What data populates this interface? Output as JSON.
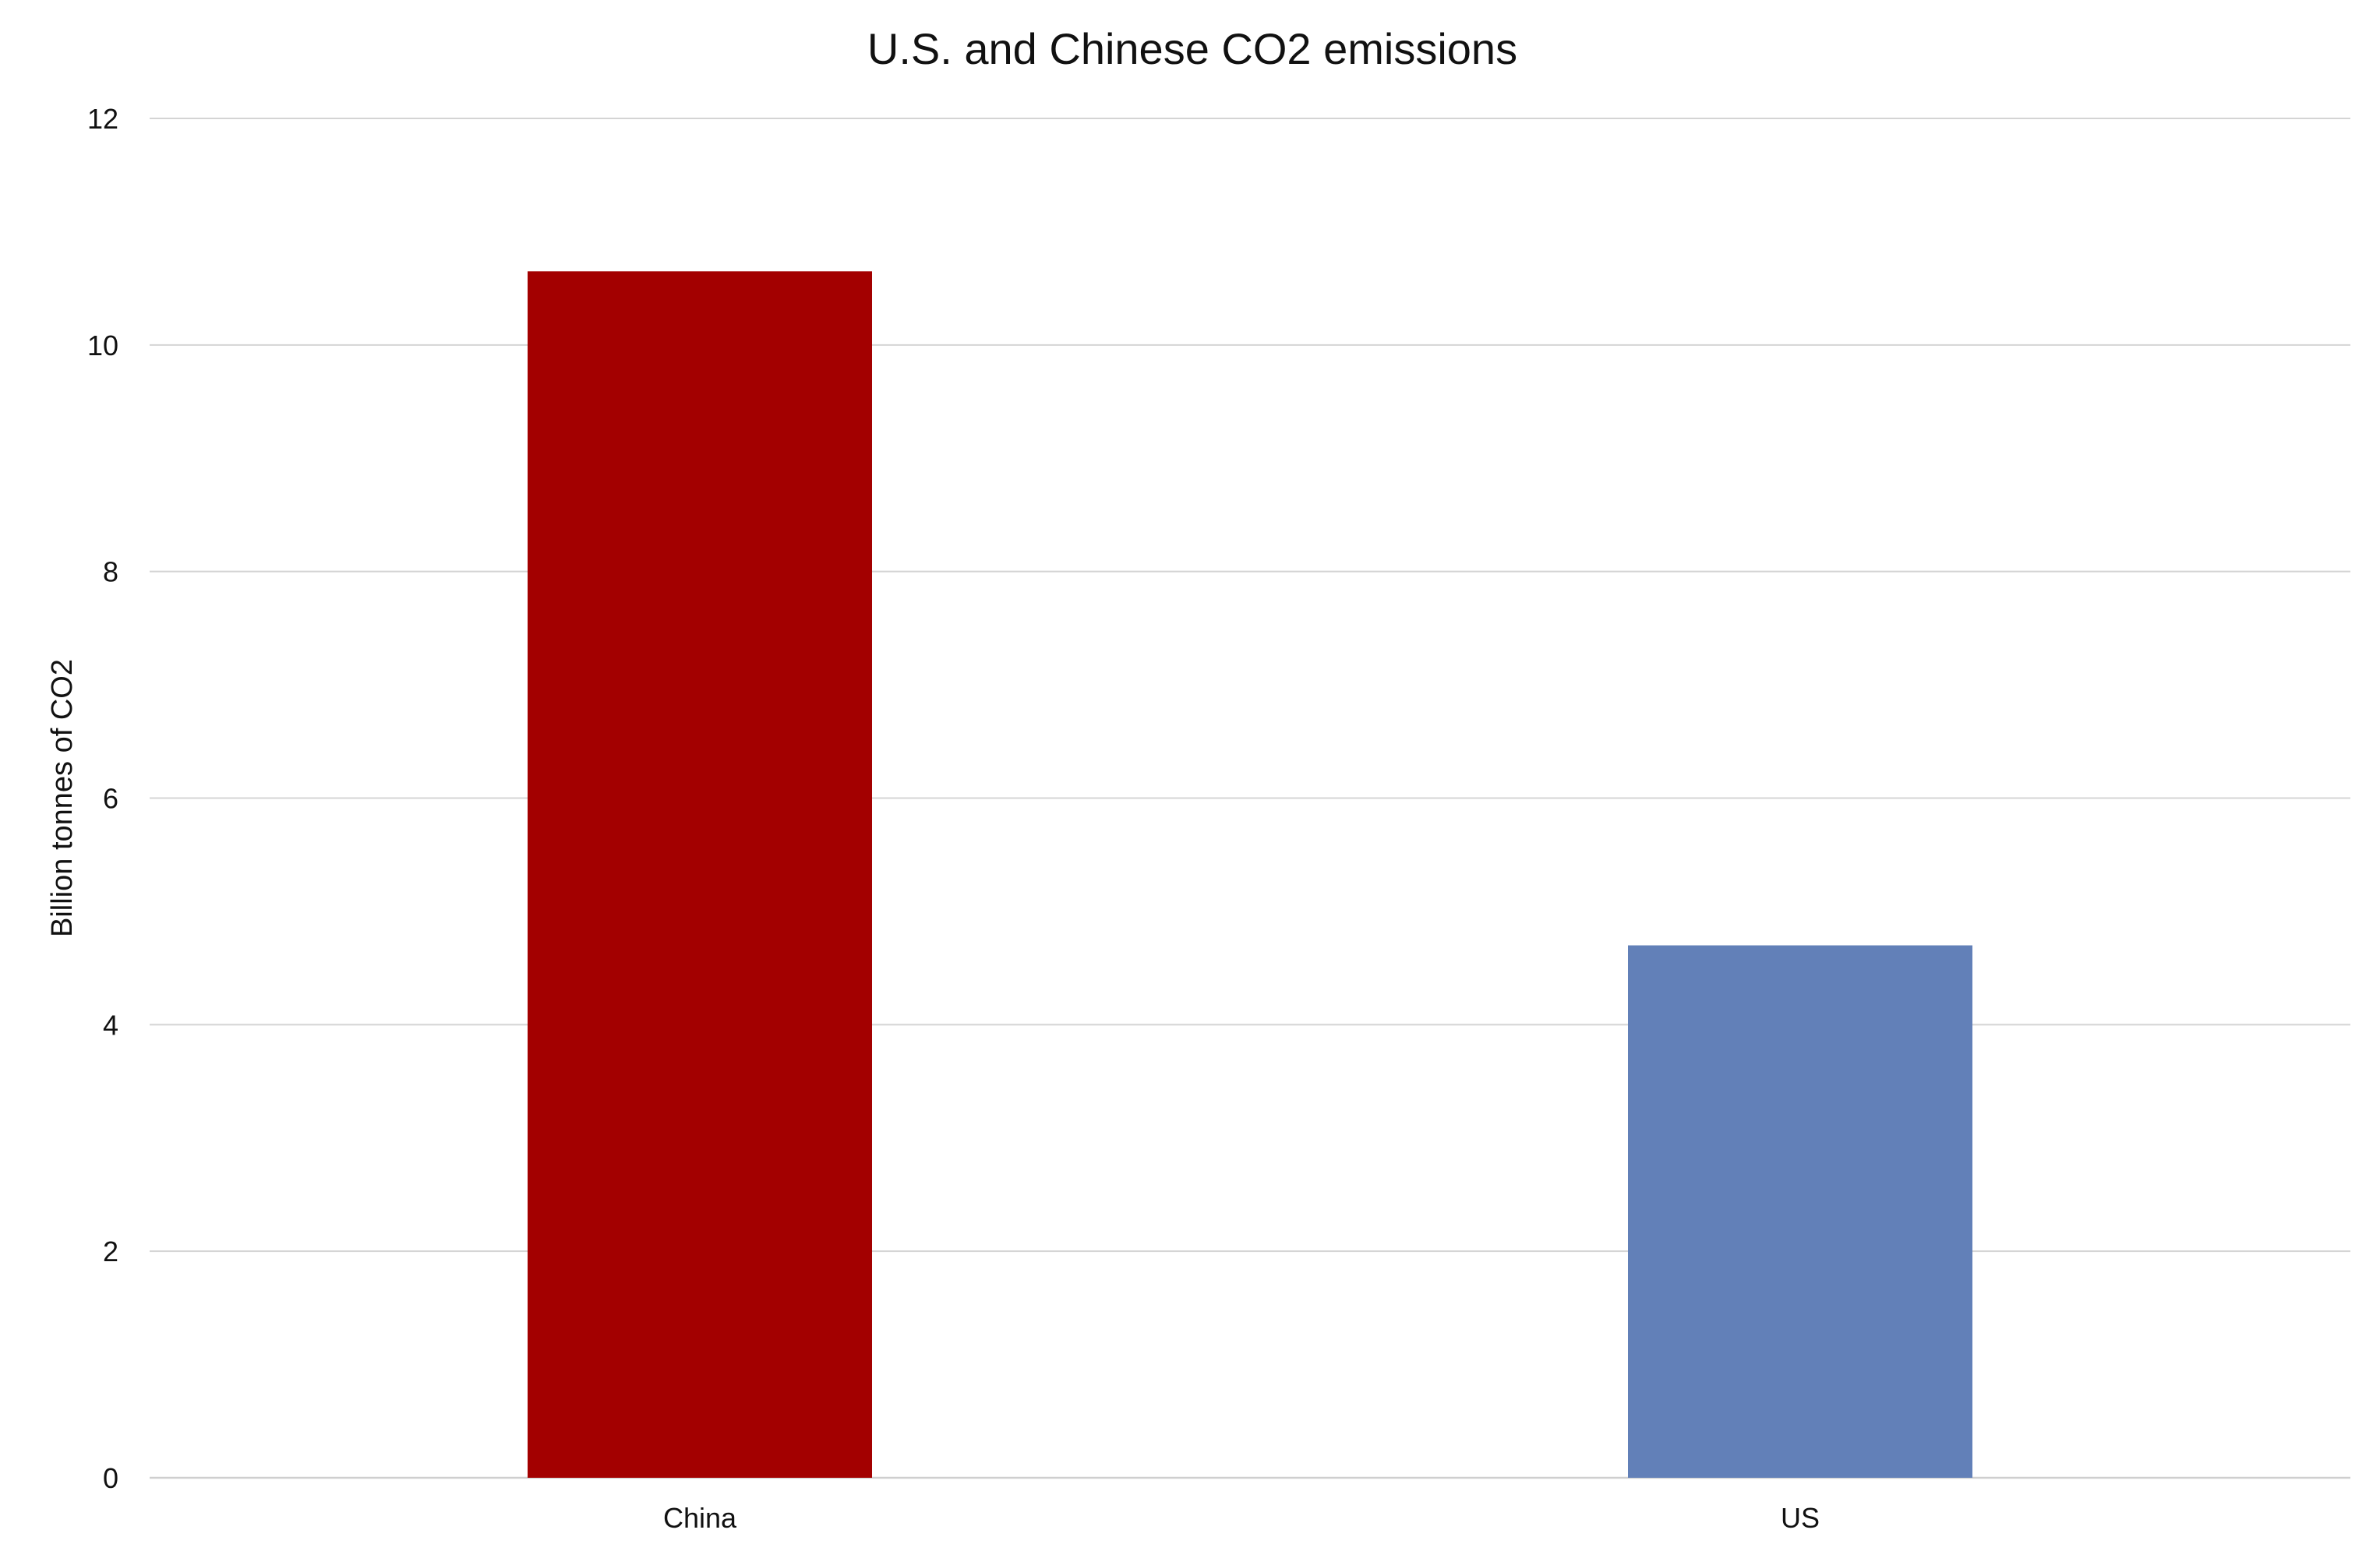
{
  "chart_data": {
    "type": "bar",
    "title": "U.S. and Chinese CO2 emissions",
    "xlabel": "",
    "ylabel": "Billion tonnes of CO2",
    "categories": [
      "China",
      "US"
    ],
    "values": [
      10.65,
      4.7
    ],
    "colors": [
      "#a30000",
      "#6280b8"
    ],
    "ylim": [
      0,
      12
    ],
    "yticks": [
      0,
      2,
      4,
      6,
      8,
      10,
      12
    ],
    "grid": true,
    "legend": "none"
  }
}
